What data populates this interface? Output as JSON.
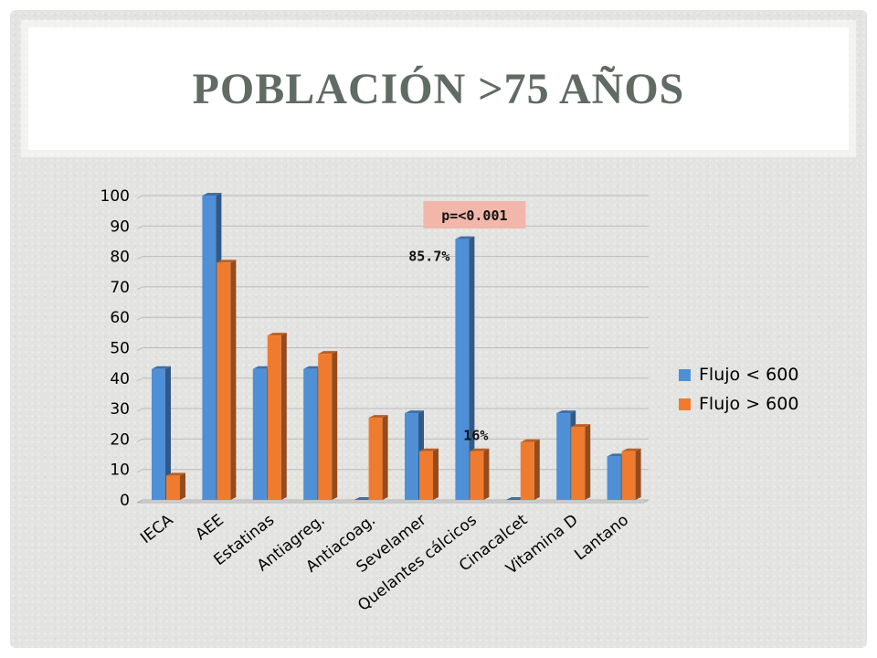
{
  "slide": {
    "title": "POBLACIÓN >75 AÑOS"
  },
  "chart_data": {
    "type": "bar",
    "categories": [
      "IECA",
      "AEE",
      "Estatinas",
      "Antiagreg.",
      "Antiacoag.",
      "Sevelamer",
      "Quelantes cálcicos",
      "Cinacalcet",
      "Vitamina D",
      "Lantano"
    ],
    "series": [
      {
        "name": "Flujo < 600",
        "values": [
          43,
          100,
          43,
          43,
          0,
          28.5,
          85.7,
          0,
          28.5,
          14.3
        ],
        "color": "#4f8fd6"
      },
      {
        "name": "Flujo > 600",
        "values": [
          8,
          78,
          54,
          48,
          27,
          16,
          16,
          19,
          24,
          16
        ],
        "color": "#ef7b2e"
      }
    ],
    "ylim": [
      0,
      100
    ],
    "yticks": [
      0,
      10,
      20,
      30,
      40,
      50,
      60,
      70,
      80,
      90,
      100
    ],
    "grid": true,
    "legend_position": "right",
    "annotations": [
      {
        "text": "p=<0.001",
        "category": "Quelantes cálcicos",
        "style": "box"
      },
      {
        "text": "85.7%",
        "category": "Quelantes cálcicos",
        "series": 0
      },
      {
        "text": "16%",
        "category": "Quelantes cálcicos",
        "series": 1
      }
    ]
  }
}
